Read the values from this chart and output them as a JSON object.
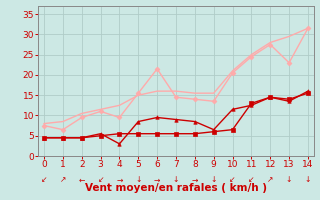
{
  "background_color": "#cce8e4",
  "grid_color": "#b0ccc8",
  "xlabel": "Vent moyen/en rafales ( km/h )",
  "x_ticks": [
    0,
    1,
    2,
    3,
    4,
    5,
    6,
    7,
    8,
    9,
    10,
    11,
    12,
    13,
    14
  ],
  "ylim": [
    0,
    37
  ],
  "xlim": [
    -0.3,
    14.3
  ],
  "y_ticks": [
    0,
    5,
    10,
    15,
    20,
    25,
    30,
    35
  ],
  "series": [
    {
      "x": [
        0,
        1,
        2,
        3,
        4,
        5,
        6,
        7,
        8,
        9,
        10,
        11,
        12,
        13,
        14
      ],
      "y": [
        4.5,
        4.5,
        4.5,
        5.0,
        5.5,
        5.5,
        5.5,
        5.5,
        5.5,
        6.0,
        6.5,
        13.0,
        14.5,
        14.0,
        15.5
      ],
      "color": "#cc0000",
      "lw": 1.0,
      "marker": "s",
      "ms": 2.5
    },
    {
      "x": [
        0,
        1,
        2,
        3,
        4,
        5,
        6,
        7,
        8,
        9,
        10,
        11,
        12,
        13,
        14
      ],
      "y": [
        4.5,
        4.5,
        4.5,
        5.5,
        3.0,
        8.5,
        9.5,
        9.0,
        8.5,
        6.5,
        11.5,
        12.5,
        14.5,
        13.5,
        16.0
      ],
      "color": "#cc0000",
      "lw": 1.0,
      "marker": "^",
      "ms": 2.5
    },
    {
      "x": [
        0,
        1,
        2,
        3,
        4,
        5,
        6,
        7,
        8,
        9,
        10,
        11,
        12,
        13,
        14
      ],
      "y": [
        7.5,
        6.5,
        9.5,
        11.0,
        9.5,
        15.5,
        21.5,
        14.5,
        14.0,
        13.5,
        20.5,
        24.5,
        27.5,
        23.0,
        31.5
      ],
      "color": "#ffaaaa",
      "lw": 1.0,
      "marker": "D",
      "ms": 2.5
    },
    {
      "x": [
        0,
        1,
        2,
        3,
        4,
        5,
        6,
        7,
        8,
        9,
        10,
        11,
        12,
        13,
        14
      ],
      "y": [
        8.0,
        8.5,
        10.5,
        11.5,
        12.5,
        15.0,
        16.0,
        16.0,
        15.5,
        15.5,
        21.0,
        25.0,
        28.0,
        29.5,
        31.5
      ],
      "color": "#ffaaaa",
      "lw": 1.0,
      "marker": null,
      "ms": 0
    }
  ],
  "wind_arrows": [
    "↙",
    "↗",
    "←",
    "↙",
    "→",
    "↓",
    "→",
    "↓",
    "→",
    "↓",
    "↙",
    "↙",
    "↗",
    "↓",
    "↓"
  ],
  "tick_color": "#cc0000",
  "label_color": "#cc0000",
  "tick_fontsize": 6.5,
  "label_fontsize": 7.5
}
